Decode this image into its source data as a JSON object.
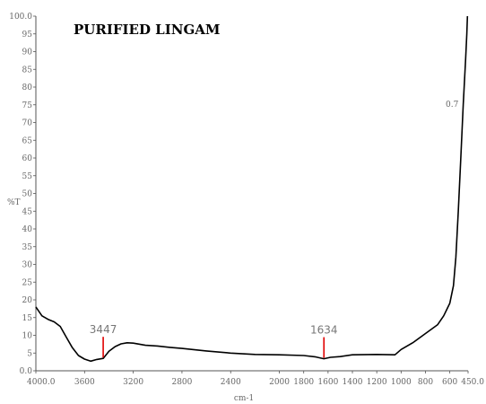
{
  "chart_data": {
    "type": "line",
    "title": "PURIFIED LINGAM",
    "ylabel": "%T",
    "xlabel": "cm-1",
    "xlim": [
      4000,
      450
    ],
    "ylim": [
      0,
      100
    ],
    "x_ticks": [
      "4000.0",
      "3600",
      "3200",
      "2800",
      "2400",
      "2000",
      "1800",
      "1600",
      "1400",
      "1200",
      "1000",
      "800",
      "600",
      "450.0"
    ],
    "y_ticks": [
      "0.0",
      "5",
      "10",
      "15",
      "20",
      "25",
      "30",
      "35",
      "40",
      "45",
      "50",
      "55",
      "60",
      "65",
      "70",
      "75",
      "80",
      "85",
      "90",
      "95",
      "100.0"
    ],
    "series": [
      {
        "x": [
          4000,
          3950,
          3900,
          3850,
          3800,
          3750,
          3700,
          3650,
          3600,
          3550,
          3500,
          3447,
          3400,
          3350,
          3300,
          3250,
          3200,
          3100,
          3000,
          2900,
          2800,
          2600,
          2400,
          2200,
          2000,
          1800,
          1700,
          1634,
          1580,
          1500,
          1400,
          1200,
          1050,
          1000,
          900,
          800,
          700,
          650,
          600,
          570,
          550,
          530,
          510,
          490,
          470,
          460,
          455
        ],
        "y": [
          18.0,
          15.5,
          14.5,
          13.8,
          12.5,
          9.5,
          6.5,
          4.3,
          3.3,
          2.7,
          3.2,
          3.5,
          5.5,
          6.8,
          7.6,
          7.9,
          7.8,
          7.2,
          7.0,
          6.6,
          6.3,
          5.6,
          5.0,
          4.6,
          4.5,
          4.3,
          3.9,
          3.4,
          3.8,
          4.0,
          4.5,
          4.6,
          4.5,
          6.0,
          8.0,
          10.5,
          13.0,
          15.5,
          19.0,
          24.0,
          32.0,
          45.0,
          60.0,
          75.0,
          88.0,
          95.0,
          100.0
        ]
      }
    ],
    "annotations": [
      {
        "label": "3447",
        "x": 3447,
        "y": 3.5
      },
      {
        "label": "1634",
        "x": 1634,
        "y": 3.4
      }
    ],
    "curve_label": "0.7",
    "curve_label_x": 497,
    "curve_label_y": 75,
    "grid": false,
    "marker_color": "#e00000",
    "line_color": "#000000"
  }
}
